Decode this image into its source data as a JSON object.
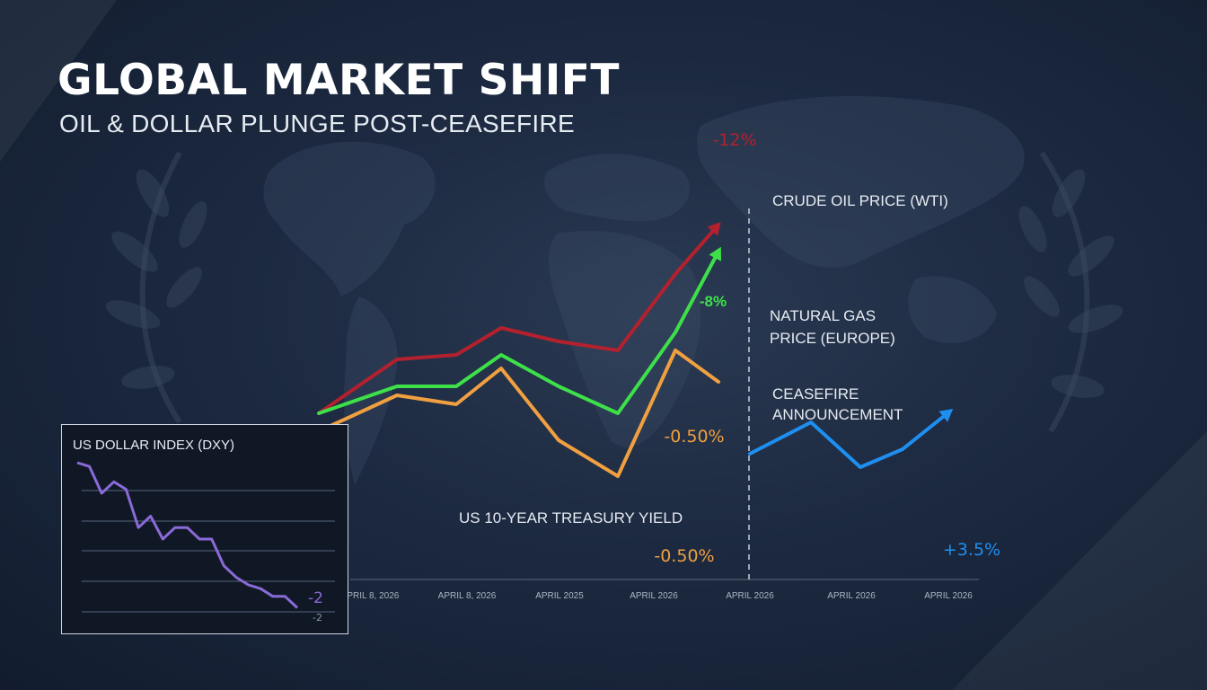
{
  "title": "GLOBAL MARKET SHIFT",
  "subtitle": "OIL & DOLLAR PLUNGE POST-CEASEFIRE",
  "colors": {
    "crude": "#b3212e",
    "gas": "#3ee04a",
    "treasury": "#f0a040",
    "blue": "#1e8ff0",
    "dxy": "#8a6ad8",
    "axis_text": "#aab4c2"
  },
  "chart_data": [
    {
      "type": "line",
      "title": "GLOBAL MARKET SHIFT",
      "x_tick_labels": [
        "APRIL 8, 2026",
        "APRIL 8, 2026",
        "APRIL 2025",
        "APRIL 2026",
        "APRIL 2026",
        "APRIL 2026",
        "APRIL 2026"
      ],
      "ceasefire_marker_label": "CEASEFIRE ANNOUNCEMENT",
      "series": [
        {
          "name": "CRUDE OIL PRICE (WTI)",
          "color_key": "crude",
          "annotation": "-12%",
          "values": [
            100,
            112,
            113,
            119,
            116,
            114,
            131,
            142
          ]
        },
        {
          "name": "NATURAL GAS PRICE (EUROPE)",
          "color_key": "gas",
          "annotation": "-8%",
          "values": [
            100,
            106,
            106,
            113,
            106,
            100,
            118,
            136
          ]
        },
        {
          "name": "US 10-YEAR TREASURY YIELD",
          "color_key": "treasury",
          "annotation": "-0.50%",
          "annotation_2": "-0.50%",
          "values": [
            96,
            104,
            102,
            110,
            94,
            86,
            114,
            107
          ]
        },
        {
          "name": "",
          "color_key": "blue",
          "annotation": "+3.5%",
          "values": [
            91,
            98,
            88,
            92,
            100
          ]
        }
      ]
    },
    {
      "type": "line",
      "title": "US DOLLAR INDEX (DXY)",
      "end_label": "-2",
      "end_label_2": "-2",
      "series": [
        {
          "name": "",
          "color_key": "dxy",
          "values": [
            104.6,
            104.5,
            103.8,
            104.1,
            103.9,
            102.9,
            103.2,
            102.6,
            102.9,
            102.9,
            102.6,
            102.6,
            101.9,
            101.6,
            101.4,
            101.3,
            101.1,
            101.1,
            100.8
          ]
        }
      ]
    }
  ]
}
